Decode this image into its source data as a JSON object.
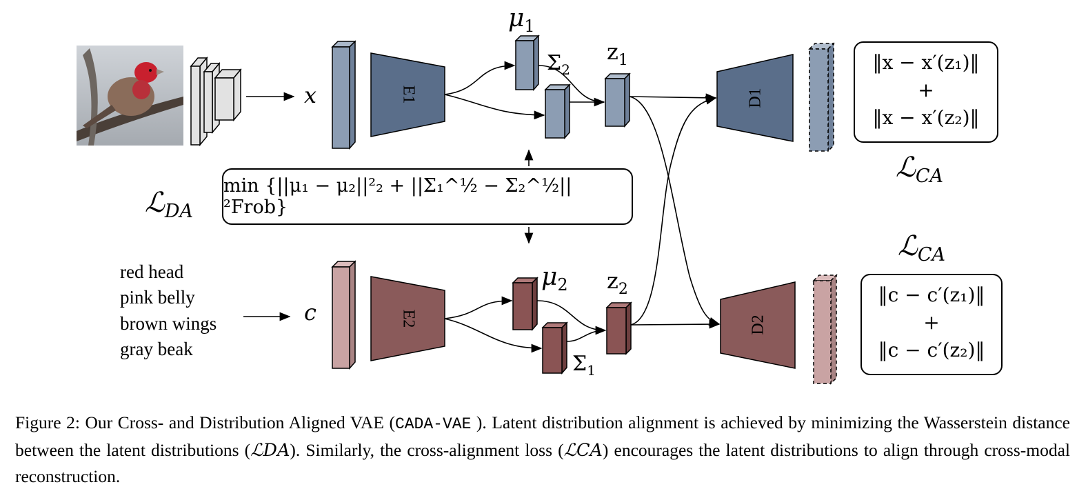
{
  "attributes": [
    "red head",
    "pink belly",
    "brown wings",
    "gray beak"
  ],
  "inputs": {
    "image_var": "x",
    "text_var": "c"
  },
  "encoders": {
    "e1": "E1",
    "e2": "E2"
  },
  "decoders": {
    "d1": "D1",
    "d2": "D2"
  },
  "latent": {
    "mu1": "μ",
    "mu1_sub": "1",
    "sigma2": "Σ",
    "sigma2_sub": "2",
    "z1": "z",
    "z1_sub": "1",
    "mu2": "μ",
    "mu2_sub": "2",
    "sigma1": "Σ",
    "sigma1_sub": "1",
    "z2": "z",
    "z2_sub": "2"
  },
  "losses": {
    "ca_symbol": "ℒ",
    "ca_sub": "CA",
    "da_symbol": "ℒ",
    "da_sub": "DA",
    "da_formula": "min {||μ₁ − μ₂||²₂ + ||Σ₁^½ − Σ₂^½||²Frob}",
    "ca_top_line1": "‖x − x′(z₁)‖",
    "ca_top_plus": "+",
    "ca_top_line2": "‖x − x′(z₂)‖",
    "ca_bottom_line1": "‖c − c′(z₁)‖",
    "ca_bottom_plus": "+",
    "ca_bottom_line2": "‖c − c′(z₂)‖"
  },
  "caption": {
    "part1": "Figure 2: Our Cross- and Distribution Aligned VAE (",
    "code": "CADA-VAE",
    "part2": " ). Latent distribution alignment is achieved by minimizing the Wasserstein distance between the latent distributions (",
    "da": "ℒDA",
    "part3": "). Similarly, the cross-alignment loss (",
    "ca": "ℒCA",
    "part4": ") encourages the latent distributions to align through cross-modal reconstruction."
  },
  "colors": {
    "image_branch": "#8c9db3",
    "image_encoder": "#5a6e8a",
    "text_branch": "#c9a3a3",
    "text_encoder": "#8a5a5a",
    "latent_red": "#8a5454"
  }
}
